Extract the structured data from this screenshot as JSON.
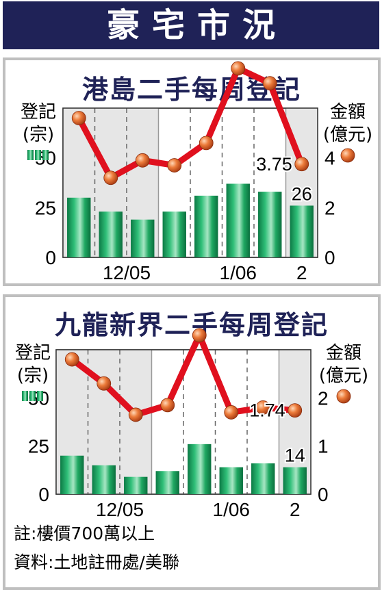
{
  "header": {
    "title": "豪宅市況"
  },
  "footnotes": {
    "note": "註:樓價700萬以上",
    "source": "資料:土地註冊處/美聯"
  },
  "colors": {
    "banner": "#1f2257",
    "bar": "#139a5a",
    "line": "#e0101e",
    "marker": "#e06a2c",
    "shade": "#e6e6e6"
  },
  "chart_data": [
    {
      "type": "bar+line",
      "title": "港島二手每周登記",
      "left_axis": {
        "label_line1": "登記",
        "label_line2": "(宗)",
        "ticks": [
          "0",
          "25",
          "50"
        ],
        "ylim": [
          0,
          75
        ]
      },
      "right_axis": {
        "label_line1": "金額",
        "label_line2": "(億元)",
        "ticks": [
          "0",
          "2",
          "4"
        ],
        "ylim": [
          0,
          6
        ]
      },
      "x_tick_labels": [
        "12/05",
        "1/06",
        "2"
      ],
      "bar_series": {
        "values": [
          30,
          23,
          19,
          23,
          31,
          37,
          33,
          26
        ]
      },
      "line_series": {
        "values": [
          5.6,
          3.2,
          3.9,
          3.7,
          4.6,
          7.6,
          7.0,
          3.75
        ]
      },
      "data_labels": {
        "last_line": "3.75",
        "last_bar": "26"
      },
      "legend_icons": {
        "bar": "bar-icon",
        "line": "ball-icon"
      }
    },
    {
      "type": "bar+line",
      "title": "九龍新界二手每周登記",
      "left_axis": {
        "label_line1": "登記",
        "label_line2": "(宗)",
        "ticks": [
          "0",
          "25",
          "50"
        ],
        "ylim": [
          0,
          75
        ]
      },
      "right_axis": {
        "label_line1": "金額",
        "label_line2": "(億元)",
        "ticks": [
          "0",
          "1",
          "2"
        ],
        "ylim": [
          0,
          3
        ]
      },
      "x_tick_labels": [
        "12/05",
        "1/06",
        "2"
      ],
      "bar_series": {
        "values": [
          20,
          15,
          9,
          12,
          26,
          14,
          16,
          14
        ]
      },
      "line_series": {
        "values": [
          2.8,
          2.3,
          1.65,
          1.85,
          3.3,
          1.7,
          1.8,
          1.74
        ]
      },
      "data_labels": {
        "last_line": "1.74",
        "last_bar": "14"
      },
      "legend_icons": {
        "bar": "bar-icon",
        "line": "ball-icon"
      }
    }
  ]
}
